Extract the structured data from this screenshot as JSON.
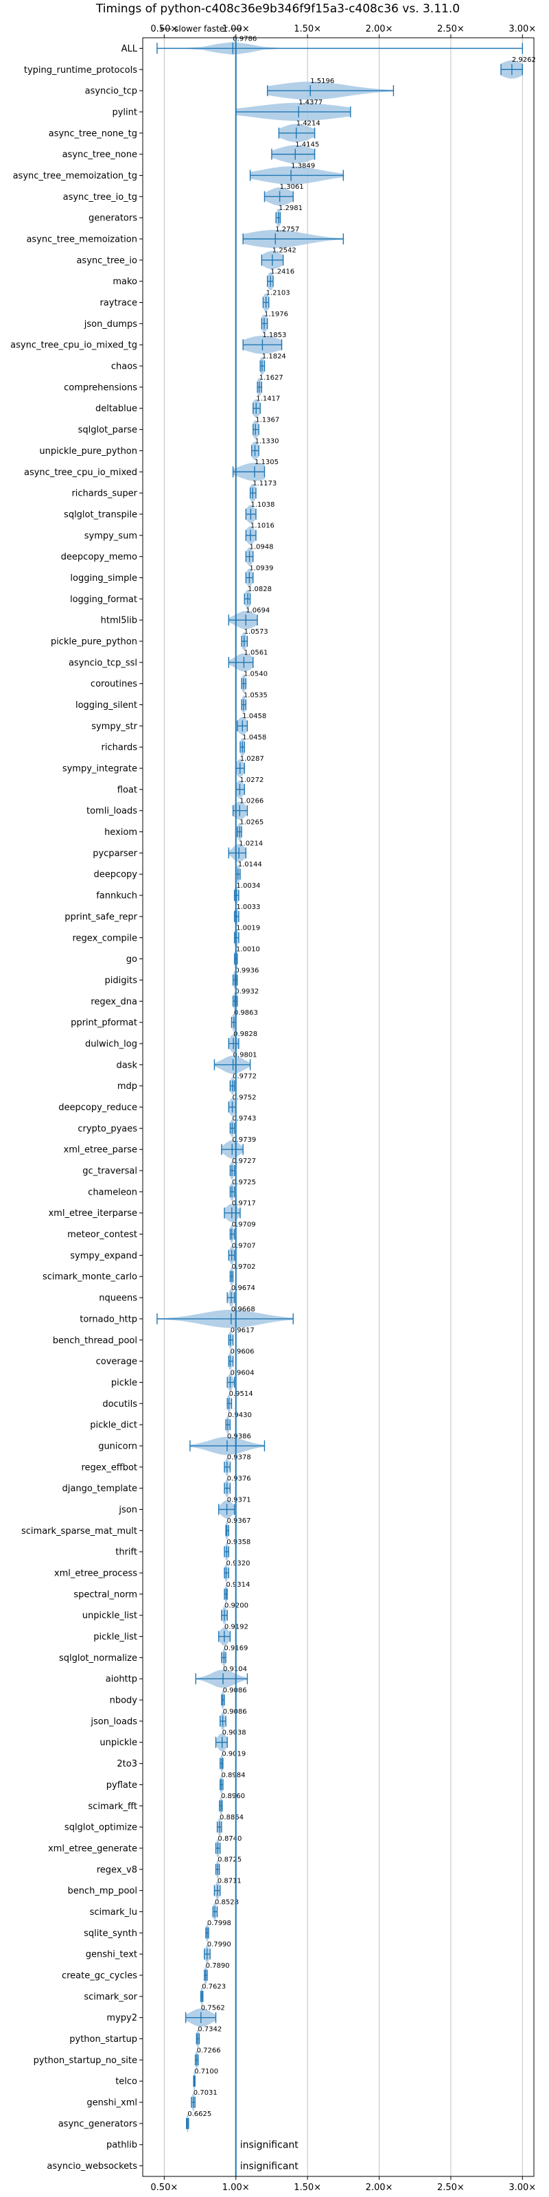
{
  "chart_data": {
    "type": "violin",
    "title": "Timings of python-c408c36e9b346f9f15a3-c408c36 vs. 3.11.0",
    "direction_label": "⟵ slower   faster ⟶",
    "x_ticks": [
      0.5,
      1.0,
      1.5,
      2.0,
      2.5,
      3.0
    ],
    "x_tick_labels": [
      "0.50×",
      "1.00×",
      "1.50×",
      "2.00×",
      "2.50×",
      "3.00×"
    ],
    "xlim": [
      0.35,
      3.08
    ],
    "reference_line": 1.0,
    "grid": true,
    "colors": {
      "violin": "#a6c8e4",
      "line": "#1f77b4",
      "outlier": "#d62728",
      "grid": "#b0b0b0"
    },
    "benchmarks": [
      {
        "name": "ALL",
        "value": 0.9786,
        "label": "0.9786",
        "min": 0.45,
        "max": 3.0,
        "spread": 0.12
      },
      {
        "name": "typing_runtime_protocols",
        "value": 2.9262,
        "label": "2.9262",
        "min": 2.85,
        "max": 3.0,
        "spread": 0.08
      },
      {
        "name": "asyncio_tcp",
        "value": 1.5196,
        "label": "1.5196",
        "min": 1.22,
        "max": 2.1,
        "spread": 0.25
      },
      {
        "name": "pylint",
        "value": 1.4377,
        "label": "1.4377",
        "min": 1.0,
        "max": 1.8,
        "spread": 0.3
      },
      {
        "name": "async_tree_none_tg",
        "value": 1.4214,
        "label": "1.4214",
        "min": 1.3,
        "max": 1.55,
        "spread": 0.1
      },
      {
        "name": "async_tree_none",
        "value": 1.4145,
        "label": "1.4145",
        "min": 1.25,
        "max": 1.55,
        "spread": 0.12
      },
      {
        "name": "async_tree_memoization_tg",
        "value": 1.3849,
        "label": "1.3849",
        "min": 1.1,
        "max": 1.75,
        "spread": 0.2
      },
      {
        "name": "async_tree_io_tg",
        "value": 1.3061,
        "label": "1.3061",
        "min": 1.2,
        "max": 1.4,
        "spread": 0.08
      },
      {
        "name": "generators",
        "value": 1.2981,
        "label": "1.2981",
        "min": 1.28,
        "max": 1.31,
        "spread": 0.015
      },
      {
        "name": "async_tree_memoization",
        "value": 1.2757,
        "label": "1.2757",
        "min": 1.05,
        "max": 1.75,
        "spread": 0.2
      },
      {
        "name": "async_tree_io",
        "value": 1.2542,
        "label": "1.2542",
        "min": 1.18,
        "max": 1.33,
        "spread": 0.07
      },
      {
        "name": "mako",
        "value": 1.2416,
        "label": "1.2416",
        "min": 1.22,
        "max": 1.26,
        "spread": 0.02
      },
      {
        "name": "raytrace",
        "value": 1.2103,
        "label": "1.2103",
        "min": 1.19,
        "max": 1.23,
        "spread": 0.02
      },
      {
        "name": "json_dumps",
        "value": 1.1976,
        "label": "1.1976",
        "min": 1.18,
        "max": 1.22,
        "spread": 0.02
      },
      {
        "name": "async_tree_cpu_io_mixed_tg",
        "value": 1.1853,
        "label": "1.1853",
        "min": 1.05,
        "max": 1.32,
        "spread": 0.12
      },
      {
        "name": "chaos",
        "value": 1.1824,
        "label": "1.1824",
        "min": 1.17,
        "max": 1.2,
        "spread": 0.015
      },
      {
        "name": "comprehensions",
        "value": 1.1627,
        "label": "1.1627",
        "min": 1.15,
        "max": 1.18,
        "spread": 0.015
      },
      {
        "name": "deltablue",
        "value": 1.1417,
        "label": "1.1417",
        "min": 1.12,
        "max": 1.17,
        "spread": 0.025
      },
      {
        "name": "sqlglot_parse",
        "value": 1.1367,
        "label": "1.1367",
        "min": 1.12,
        "max": 1.16,
        "spread": 0.02
      },
      {
        "name": "unpickle_pure_python",
        "value": 1.133,
        "label": "1.1330",
        "min": 1.11,
        "max": 1.16,
        "spread": 0.025
      },
      {
        "name": "async_tree_cpu_io_mixed",
        "value": 1.1305,
        "label": "1.1305",
        "min": 0.98,
        "max": 1.2,
        "spread": 0.1
      },
      {
        "name": "richards_super",
        "value": 1.1173,
        "label": "1.1173",
        "min": 1.1,
        "max": 1.14,
        "spread": 0.02
      },
      {
        "name": "sqlglot_transpile",
        "value": 1.1038,
        "label": "1.1038",
        "min": 1.07,
        "max": 1.14,
        "spread": 0.03
      },
      {
        "name": "sympy_sum",
        "value": 1.1016,
        "label": "1.1016",
        "min": 1.07,
        "max": 1.14,
        "spread": 0.03
      },
      {
        "name": "deepcopy_memo",
        "value": 1.0948,
        "label": "1.0948",
        "min": 1.07,
        "max": 1.12,
        "spread": 0.02
      },
      {
        "name": "logging_simple",
        "value": 1.0939,
        "label": "1.0939",
        "min": 1.07,
        "max": 1.12,
        "spread": 0.02
      },
      {
        "name": "logging_format",
        "value": 1.0828,
        "label": "1.0828",
        "min": 1.06,
        "max": 1.1,
        "spread": 0.02
      },
      {
        "name": "html5lib",
        "value": 1.0694,
        "label": "1.0694",
        "min": 0.95,
        "max": 1.15,
        "spread": 0.07
      },
      {
        "name": "pickle_pure_python",
        "value": 1.0573,
        "label": "1.0573",
        "min": 1.04,
        "max": 1.08,
        "spread": 0.015
      },
      {
        "name": "asyncio_tcp_ssl",
        "value": 1.0561,
        "label": "1.0561",
        "min": 0.95,
        "max": 1.12,
        "spread": 0.06
      },
      {
        "name": "coroutines",
        "value": 1.054,
        "label": "1.0540",
        "min": 1.04,
        "max": 1.07,
        "spread": 0.012
      },
      {
        "name": "logging_silent",
        "value": 1.0535,
        "label": "1.0535",
        "min": 1.04,
        "max": 1.07,
        "spread": 0.012
      },
      {
        "name": "sympy_str",
        "value": 1.0458,
        "label": "1.0458",
        "min": 1.01,
        "max": 1.08,
        "spread": 0.03
      },
      {
        "name": "richards",
        "value": 1.0458,
        "label": "1.0458",
        "min": 1.03,
        "max": 1.06,
        "spread": 0.015
      },
      {
        "name": "sympy_integrate",
        "value": 1.0287,
        "label": "1.0287",
        "min": 1.0,
        "max": 1.06,
        "spread": 0.025
      },
      {
        "name": "float",
        "value": 1.0272,
        "label": "1.0272",
        "min": 1.0,
        "max": 1.06,
        "spread": 0.025
      },
      {
        "name": "tomli_loads",
        "value": 1.0266,
        "label": "1.0266",
        "min": 0.98,
        "max": 1.08,
        "spread": 0.04
      },
      {
        "name": "hexiom",
        "value": 1.0265,
        "label": "1.0265",
        "min": 1.01,
        "max": 1.04,
        "spread": 0.012
      },
      {
        "name": "pycparser",
        "value": 1.0214,
        "label": "1.0214",
        "min": 0.95,
        "max": 1.07,
        "spread": 0.04
      },
      {
        "name": "deepcopy",
        "value": 1.0144,
        "label": "1.0144",
        "min": 1.0,
        "max": 1.03,
        "spread": 0.012
      },
      {
        "name": "fannkuch",
        "value": 1.0034,
        "label": "1.0034",
        "min": 0.99,
        "max": 1.02,
        "spread": 0.012
      },
      {
        "name": "pprint_safe_repr",
        "value": 1.0033,
        "label": "1.0033",
        "min": 0.99,
        "max": 1.02,
        "spread": 0.012
      },
      {
        "name": "regex_compile",
        "value": 1.0019,
        "label": "1.0019",
        "min": 0.99,
        "max": 1.02,
        "spread": 0.012
      },
      {
        "name": "go",
        "value": 1.001,
        "label": "1.0010",
        "min": 0.99,
        "max": 1.01,
        "spread": 0.01
      },
      {
        "name": "pidigits",
        "value": 0.9936,
        "label": "0.9936",
        "min": 0.98,
        "max": 1.01,
        "spread": 0.01
      },
      {
        "name": "regex_dna",
        "value": 0.9932,
        "label": "0.9932",
        "min": 0.98,
        "max": 1.01,
        "spread": 0.01
      },
      {
        "name": "pprint_pformat",
        "value": 0.9863,
        "label": "0.9863",
        "min": 0.97,
        "max": 1.0,
        "spread": 0.012
      },
      {
        "name": "dulwich_log",
        "value": 0.9828,
        "label": "0.9828",
        "min": 0.95,
        "max": 1.02,
        "spread": 0.025
      },
      {
        "name": "dask",
        "value": 0.9801,
        "label": "0.9801",
        "min": 0.85,
        "max": 1.1,
        "spread": 0.07
      },
      {
        "name": "mdp",
        "value": 0.9772,
        "label": "0.9772",
        "min": 0.96,
        "max": 0.99,
        "spread": 0.012
      },
      {
        "name": "deepcopy_reduce",
        "value": 0.9752,
        "label": "0.9752",
        "min": 0.95,
        "max": 1.0,
        "spread": 0.02
      },
      {
        "name": "crypto_pyaes",
        "value": 0.9743,
        "label": "0.9743",
        "min": 0.96,
        "max": 0.99,
        "spread": 0.012
      },
      {
        "name": "xml_etree_parse",
        "value": 0.9739,
        "label": "0.9739",
        "min": 0.9,
        "max": 1.05,
        "spread": 0.05
      },
      {
        "name": "gc_traversal",
        "value": 0.9727,
        "label": "0.9727",
        "min": 0.96,
        "max": 0.99,
        "spread": 0.012
      },
      {
        "name": "chameleon",
        "value": 0.9725,
        "label": "0.9725",
        "min": 0.96,
        "max": 0.99,
        "spread": 0.012
      },
      {
        "name": "xml_etree_iterparse",
        "value": 0.9717,
        "label": "0.9717",
        "min": 0.92,
        "max": 1.03,
        "spread": 0.04
      },
      {
        "name": "meteor_contest",
        "value": 0.9709,
        "label": "0.9709",
        "min": 0.96,
        "max": 0.99,
        "spread": 0.01
      },
      {
        "name": "sympy_expand",
        "value": 0.9707,
        "label": "0.9707",
        "min": 0.95,
        "max": 0.99,
        "spread": 0.015
      },
      {
        "name": "scimark_monte_carlo",
        "value": 0.9702,
        "label": "0.9702",
        "min": 0.96,
        "max": 0.98,
        "spread": 0.01
      },
      {
        "name": "nqueens",
        "value": 0.9674,
        "label": "0.9674",
        "min": 0.94,
        "max": 0.99,
        "spread": 0.015
      },
      {
        "name": "tornado_http",
        "value": 0.9668,
        "label": "0.9668",
        "min": 0.45,
        "max": 1.4,
        "spread": 0.2
      },
      {
        "name": "bench_thread_pool",
        "value": 0.9617,
        "label": "0.9617",
        "min": 0.95,
        "max": 0.98,
        "spread": 0.01
      },
      {
        "name": "coverage",
        "value": 0.9606,
        "label": "0.9606",
        "min": 0.95,
        "max": 0.98,
        "spread": 0.01
      },
      {
        "name": "pickle",
        "value": 0.9604,
        "label": "0.9604",
        "min": 0.94,
        "max": 0.99,
        "spread": 0.015
      },
      {
        "name": "docutils",
        "value": 0.9514,
        "label": "0.9514",
        "min": 0.94,
        "max": 0.97,
        "spread": 0.01
      },
      {
        "name": "pickle_dict",
        "value": 0.943,
        "label": "0.9430",
        "min": 0.93,
        "max": 0.96,
        "spread": 0.01
      },
      {
        "name": "gunicorn",
        "value": 0.9386,
        "label": "0.9386",
        "min": 0.68,
        "max": 1.2,
        "spread": 0.12
      },
      {
        "name": "regex_effbot",
        "value": 0.9378,
        "label": "0.9378",
        "min": 0.92,
        "max": 0.96,
        "spread": 0.01
      },
      {
        "name": "django_template",
        "value": 0.9376,
        "label": "0.9376",
        "min": 0.92,
        "max": 0.96,
        "spread": 0.012
      },
      {
        "name": "json",
        "value": 0.9371,
        "label": "0.9371",
        "min": 0.88,
        "max": 0.99,
        "spread": 0.04
      },
      {
        "name": "scimark_sparse_mat_mult",
        "value": 0.9367,
        "label": "0.9367",
        "min": 0.93,
        "max": 0.95,
        "spread": 0.008
      },
      {
        "name": "thrift",
        "value": 0.9358,
        "label": "0.9358",
        "min": 0.92,
        "max": 0.95,
        "spread": 0.01
      },
      {
        "name": "xml_etree_process",
        "value": 0.932,
        "label": "0.9320",
        "min": 0.92,
        "max": 0.95,
        "spread": 0.01
      },
      {
        "name": "spectral_norm",
        "value": 0.9314,
        "label": "0.9314",
        "min": 0.92,
        "max": 0.94,
        "spread": 0.008
      },
      {
        "name": "unpickle_list",
        "value": 0.92,
        "label": "0.9200",
        "min": 0.9,
        "max": 0.94,
        "spread": 0.012
      },
      {
        "name": "pickle_list",
        "value": 0.9192,
        "label": "0.9192",
        "min": 0.88,
        "max": 0.96,
        "spread": 0.03
      },
      {
        "name": "sqlglot_normalize",
        "value": 0.9169,
        "label": "0.9169",
        "min": 0.9,
        "max": 0.93,
        "spread": 0.01
      },
      {
        "name": "aiohttp",
        "value": 0.9104,
        "label": "0.9104",
        "min": 0.72,
        "max": 1.08,
        "spread": 0.08
      },
      {
        "name": "nbody",
        "value": 0.9086,
        "label": "0.9086",
        "min": 0.9,
        "max": 0.92,
        "spread": 0.008
      },
      {
        "name": "json_loads",
        "value": 0.9086,
        "label": "0.9086",
        "min": 0.89,
        "max": 0.93,
        "spread": 0.012
      },
      {
        "name": "unpickle",
        "value": 0.9038,
        "label": "0.9038",
        "min": 0.86,
        "max": 0.94,
        "spread": 0.03
      },
      {
        "name": "2to3",
        "value": 0.9019,
        "label": "0.9019",
        "min": 0.89,
        "max": 0.91,
        "spread": 0.008
      },
      {
        "name": "pyflate",
        "value": 0.8984,
        "label": "0.8984",
        "min": 0.89,
        "max": 0.91,
        "spread": 0.008
      },
      {
        "name": "scimark_fft",
        "value": 0.896,
        "label": "0.8960",
        "min": 0.885,
        "max": 0.905,
        "spread": 0.008
      },
      {
        "name": "sqlglot_optimize",
        "value": 0.8864,
        "label": "0.8864",
        "min": 0.87,
        "max": 0.9,
        "spread": 0.01
      },
      {
        "name": "xml_etree_generate",
        "value": 0.874,
        "label": "0.8740",
        "min": 0.86,
        "max": 0.89,
        "spread": 0.01
      },
      {
        "name": "regex_v8",
        "value": 0.8725,
        "label": "0.8725",
        "min": 0.86,
        "max": 0.885,
        "spread": 0.008
      },
      {
        "name": "bench_mp_pool",
        "value": 0.8711,
        "label": "0.8711",
        "min": 0.85,
        "max": 0.89,
        "spread": 0.012
      },
      {
        "name": "scimark_lu",
        "value": 0.8528,
        "label": "0.8528",
        "min": 0.84,
        "max": 0.87,
        "spread": 0.01
      },
      {
        "name": "sqlite_synth",
        "value": 0.7998,
        "label": "0.7998",
        "min": 0.79,
        "max": 0.81,
        "spread": 0.008
      },
      {
        "name": "genshi_text",
        "value": 0.799,
        "label": "0.7990",
        "min": 0.78,
        "max": 0.82,
        "spread": 0.012
      },
      {
        "name": "create_gc_cycles",
        "value": 0.789,
        "label": "0.7890",
        "min": 0.78,
        "max": 0.8,
        "spread": 0.008
      },
      {
        "name": "scimark_sor",
        "value": 0.7623,
        "label": "0.7623",
        "min": 0.755,
        "max": 0.77,
        "spread": 0.006
      },
      {
        "name": "mypy2",
        "value": 0.7562,
        "label": "0.7562",
        "min": 0.65,
        "max": 0.86,
        "spread": 0.07
      },
      {
        "name": "python_startup",
        "value": 0.7342,
        "label": "0.7342",
        "min": 0.725,
        "max": 0.745,
        "spread": 0.008
      },
      {
        "name": "python_startup_no_site",
        "value": 0.7266,
        "label": "0.7266",
        "min": 0.717,
        "max": 0.737,
        "spread": 0.008
      },
      {
        "name": "telco",
        "value": 0.71,
        "label": "0.7100",
        "min": 0.705,
        "max": 0.715,
        "spread": 0.005
      },
      {
        "name": "genshi_xml",
        "value": 0.7031,
        "label": "0.7031",
        "min": 0.69,
        "max": 0.715,
        "spread": 0.008
      },
      {
        "name": "async_generators",
        "value": 0.6625,
        "label": "0.6625",
        "min": 0.655,
        "max": 0.67,
        "spread": 0.005
      },
      {
        "name": "pathlib",
        "value": null,
        "label": "insignificant"
      },
      {
        "name": "asyncio_websockets",
        "value": null,
        "label": "insignificant"
      }
    ]
  }
}
